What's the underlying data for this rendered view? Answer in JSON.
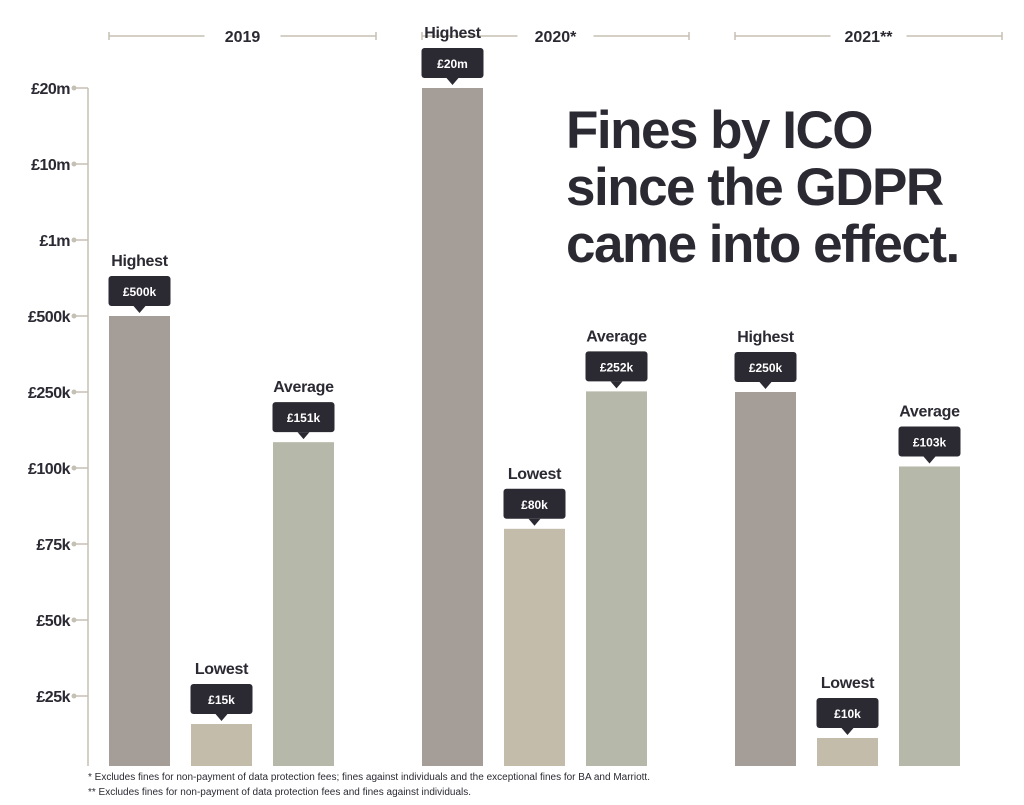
{
  "title_lines": [
    "Fines by ICO",
    "since the GDPR",
    "came into effect."
  ],
  "footnotes": [
    "* Excludes fines for non-payment of data protection fees; fines against individuals and the exceptional fines for BA and Marriott.",
    "** Excludes fines for non-payment of data protection fees and fines against individuals."
  ],
  "colors": {
    "Highest": "#a59e98",
    "Lowest": "#c3bcab",
    "Average": "#b6b9a9",
    "badge": "#2b2a33",
    "axis": "#c5c0b4"
  },
  "chart_data": {
    "type": "bar",
    "title": "Fines by ICO since the GDPR came into effect.",
    "scale": "ordinal",
    "y_ticks": [
      "£20m",
      "£10m",
      "£1m",
      "£500k",
      "£250k",
      "£100k",
      "£75k",
      "£50k",
      "£25k"
    ],
    "y_tick_values": [
      20000000,
      10000000,
      1000000,
      500000,
      250000,
      100000,
      75000,
      50000,
      25000
    ],
    "categories": [
      "2019",
      "2020*",
      "2021**"
    ],
    "series": [
      {
        "name": "Highest",
        "values": [
          500000,
          20000000,
          250000
        ],
        "labels": [
          "£500k",
          "£20m",
          "£250k"
        ]
      },
      {
        "name": "Lowest",
        "values": [
          15000,
          80000,
          10000
        ],
        "labels": [
          "£15k",
          "£80k",
          "£10k"
        ]
      },
      {
        "name": "Average",
        "values": [
          151000,
          252000,
          103000
        ],
        "labels": [
          "£151k",
          "£252k",
          "£103k"
        ]
      }
    ]
  }
}
